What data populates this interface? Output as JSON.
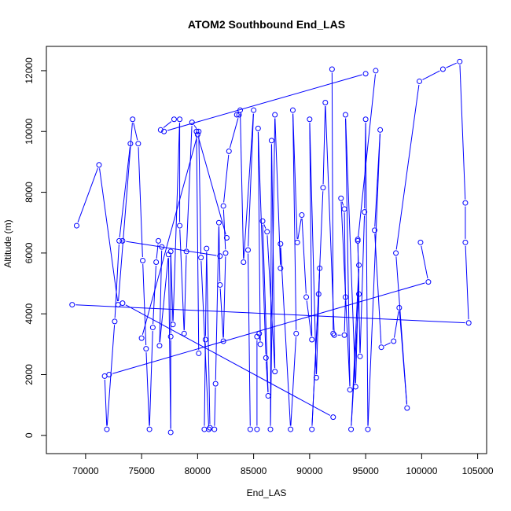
{
  "chart_data": {
    "type": "line",
    "title": "ATOM2 Southbound End_LAS",
    "xlabel": "End_LAS",
    "ylabel": "Altitude (m)",
    "xlim": [
      66500,
      105800
    ],
    "ylim": [
      -600,
      12800
    ],
    "x_ticks": [
      70000,
      75000,
      80000,
      85000,
      90000,
      95000,
      100000,
      105000
    ],
    "y_ticks": [
      0,
      2000,
      4000,
      6000,
      8000,
      10000,
      12000
    ],
    "x_tick_labels": [
      "70000",
      "75000",
      "80000",
      "85000",
      "90000",
      "95000",
      "100000",
      "105000"
    ],
    "y_tick_labels": [
      "0",
      "2000",
      "4000",
      "6000",
      "8000",
      "10000",
      "12000"
    ],
    "grid": false,
    "legend": "none",
    "series_color": "#0000ff",
    "marker": "open-circle",
    "series": [
      {
        "values": [
          {
            "x": 68800,
            "y": 4300
          },
          {
            "x": 104200,
            "y": 3700
          },
          {
            "x": 103900,
            "y": 6350
          },
          {
            "x": 103900,
            "y": 7650
          },
          {
            "x": 103400,
            "y": 12300
          },
          {
            "x": 101900,
            "y": 12050
          },
          {
            "x": 99800,
            "y": 11650
          },
          {
            "x": 97700,
            "y": 6000
          },
          {
            "x": 98700,
            "y": 900
          },
          {
            "x": 98000,
            "y": 4200
          },
          {
            "x": 97500,
            "y": 3100
          },
          {
            "x": 96400,
            "y": 2900
          },
          {
            "x": 95800,
            "y": 6750
          },
          {
            "x": 96300,
            "y": 10050
          },
          {
            "x": 95200,
            "y": 200
          },
          {
            "x": 95000,
            "y": 10400
          },
          {
            "x": 94900,
            "y": 7350
          },
          {
            "x": 94500,
            "y": 2600
          },
          {
            "x": 94300,
            "y": 6450
          },
          {
            "x": 94400,
            "y": 4650
          },
          {
            "x": 93700,
            "y": 200
          },
          {
            "x": 94400,
            "y": 5600
          },
          {
            "x": 94100,
            "y": 1600
          },
          {
            "x": 93200,
            "y": 10550
          },
          {
            "x": 93600,
            "y": 1500
          },
          {
            "x": 92800,
            "y": 7800
          },
          {
            "x": 93100,
            "y": 7450
          },
          {
            "x": 93200,
            "y": 4550
          },
          {
            "x": 93100,
            "y": 3300
          },
          {
            "x": 92200,
            "y": 3300
          },
          {
            "x": 91400,
            "y": 10950
          },
          {
            "x": 91200,
            "y": 8150
          },
          {
            "x": 90800,
            "y": 4650
          },
          {
            "x": 90200,
            "y": 200
          },
          {
            "x": 90900,
            "y": 5500
          },
          {
            "x": 90600,
            "y": 1900
          },
          {
            "x": 90000,
            "y": 10400
          },
          {
            "x": 90200,
            "y": 3150
          },
          {
            "x": 89700,
            "y": 4550
          },
          {
            "x": 89300,
            "y": 7250
          },
          {
            "x": 88900,
            "y": 6350
          },
          {
            "x": 88500,
            "y": 10700
          },
          {
            "x": 88800,
            "y": 3350
          },
          {
            "x": 88300,
            "y": 200
          },
          {
            "x": 87400,
            "y": 6300
          },
          {
            "x": 87400,
            "y": 5500
          },
          {
            "x": 86900,
            "y": 10550
          },
          {
            "x": 86500,
            "y": 200
          },
          {
            "x": 86600,
            "y": 9700
          },
          {
            "x": 86900,
            "y": 2100
          },
          {
            "x": 86200,
            "y": 6700
          },
          {
            "x": 85800,
            "y": 7050
          },
          {
            "x": 86300,
            "y": 1300
          },
          {
            "x": 86100,
            "y": 2550
          },
          {
            "x": 85400,
            "y": 10100
          },
          {
            "x": 85600,
            "y": 3000
          },
          {
            "x": 85500,
            "y": 3350
          },
          {
            "x": 85300,
            "y": 3250
          },
          {
            "x": 85300,
            "y": 200
          },
          {
            "x": 84700,
            "y": 200
          },
          {
            "x": 84500,
            "y": 6100
          },
          {
            "x": 85000,
            "y": 10700
          },
          {
            "x": 84100,
            "y": 5700
          },
          {
            "x": 83800,
            "y": 10700
          },
          {
            "x": 83500,
            "y": 10550
          },
          {
            "x": 83700,
            "y": 10550
          },
          {
            "x": 82800,
            "y": 9350
          },
          {
            "x": 82300,
            "y": 7550
          },
          {
            "x": 82500,
            "y": 6000
          },
          {
            "x": 82300,
            "y": 3100
          },
          {
            "x": 82000,
            "y": 4950
          },
          {
            "x": 81900,
            "y": 7000
          },
          {
            "x": 81600,
            "y": 1700
          },
          {
            "x": 81500,
            "y": 200
          },
          {
            "x": 81100,
            "y": 250
          },
          {
            "x": 80800,
            "y": 6150
          },
          {
            "x": 80700,
            "y": 3150
          },
          {
            "x": 80600,
            "y": 200
          },
          {
            "x": 81000,
            "y": 200
          },
          {
            "x": 80300,
            "y": 5850
          },
          {
            "x": 80100,
            "y": 10000
          },
          {
            "x": 79500,
            "y": 10300
          },
          {
            "x": 79000,
            "y": 6050
          },
          {
            "x": 78800,
            "y": 3350
          },
          {
            "x": 78400,
            "y": 6900
          },
          {
            "x": 78400,
            "y": 10400
          },
          {
            "x": 77800,
            "y": 3650
          },
          {
            "x": 77600,
            "y": 6050
          },
          {
            "x": 77600,
            "y": 3250
          },
          {
            "x": 77600,
            "y": 100
          },
          {
            "x": 77400,
            "y": 5950
          },
          {
            "x": 76600,
            "y": 2950
          },
          {
            "x": 76800,
            "y": 6200
          },
          {
            "x": 76500,
            "y": 6400
          },
          {
            "x": 76300,
            "y": 5700
          },
          {
            "x": 76000,
            "y": 3550
          },
          {
            "x": 75700,
            "y": 200
          },
          {
            "x": 75400,
            "y": 2850
          },
          {
            "x": 75100,
            "y": 5750
          },
          {
            "x": 74700,
            "y": 9600
          },
          {
            "x": 74200,
            "y": 10400
          },
          {
            "x": 72900,
            "y": 4300
          },
          {
            "x": 71200,
            "y": 8900
          },
          {
            "x": 69200,
            "y": 6900
          }
        ]
      },
      {
        "values": [
          {
            "x": 71700,
            "y": 1950
          },
          {
            "x": 71900,
            "y": 200
          },
          {
            "x": 72600,
            "y": 3750
          },
          {
            "x": 73000,
            "y": 6400
          },
          {
            "x": 74000,
            "y": 9600
          }
        ]
      },
      {
        "values": [
          {
            "x": 72100,
            "y": 2000
          },
          {
            "x": 100600,
            "y": 5050
          },
          {
            "x": 99900,
            "y": 6350
          }
        ]
      },
      {
        "values": [
          {
            "x": 73300,
            "y": 4350
          },
          {
            "x": 92100,
            "y": 600
          }
        ]
      },
      {
        "values": [
          {
            "x": 75000,
            "y": 3200
          },
          {
            "x": 80000,
            "y": 9900
          },
          {
            "x": 82600,
            "y": 6500
          }
        ]
      },
      {
        "values": [
          {
            "x": 76700,
            "y": 10050
          },
          {
            "x": 77900,
            "y": 10400
          }
        ]
      },
      {
        "values": [
          {
            "x": 77000,
            "y": 10000
          },
          {
            "x": 95000,
            "y": 11900
          }
        ]
      },
      {
        "values": [
          {
            "x": 92100,
            "y": 3350
          },
          {
            "x": 92000,
            "y": 12050
          }
        ]
      },
      {
        "values": [
          {
            "x": 95900,
            "y": 12000
          },
          {
            "x": 94300,
            "y": 6400
          }
        ]
      },
      {
        "values": [
          {
            "x": 80100,
            "y": 2700
          },
          {
            "x": 79900,
            "y": 10000
          }
        ]
      },
      {
        "values": [
          {
            "x": 73300,
            "y": 6400
          },
          {
            "x": 82000,
            "y": 5900
          }
        ]
      }
    ]
  }
}
